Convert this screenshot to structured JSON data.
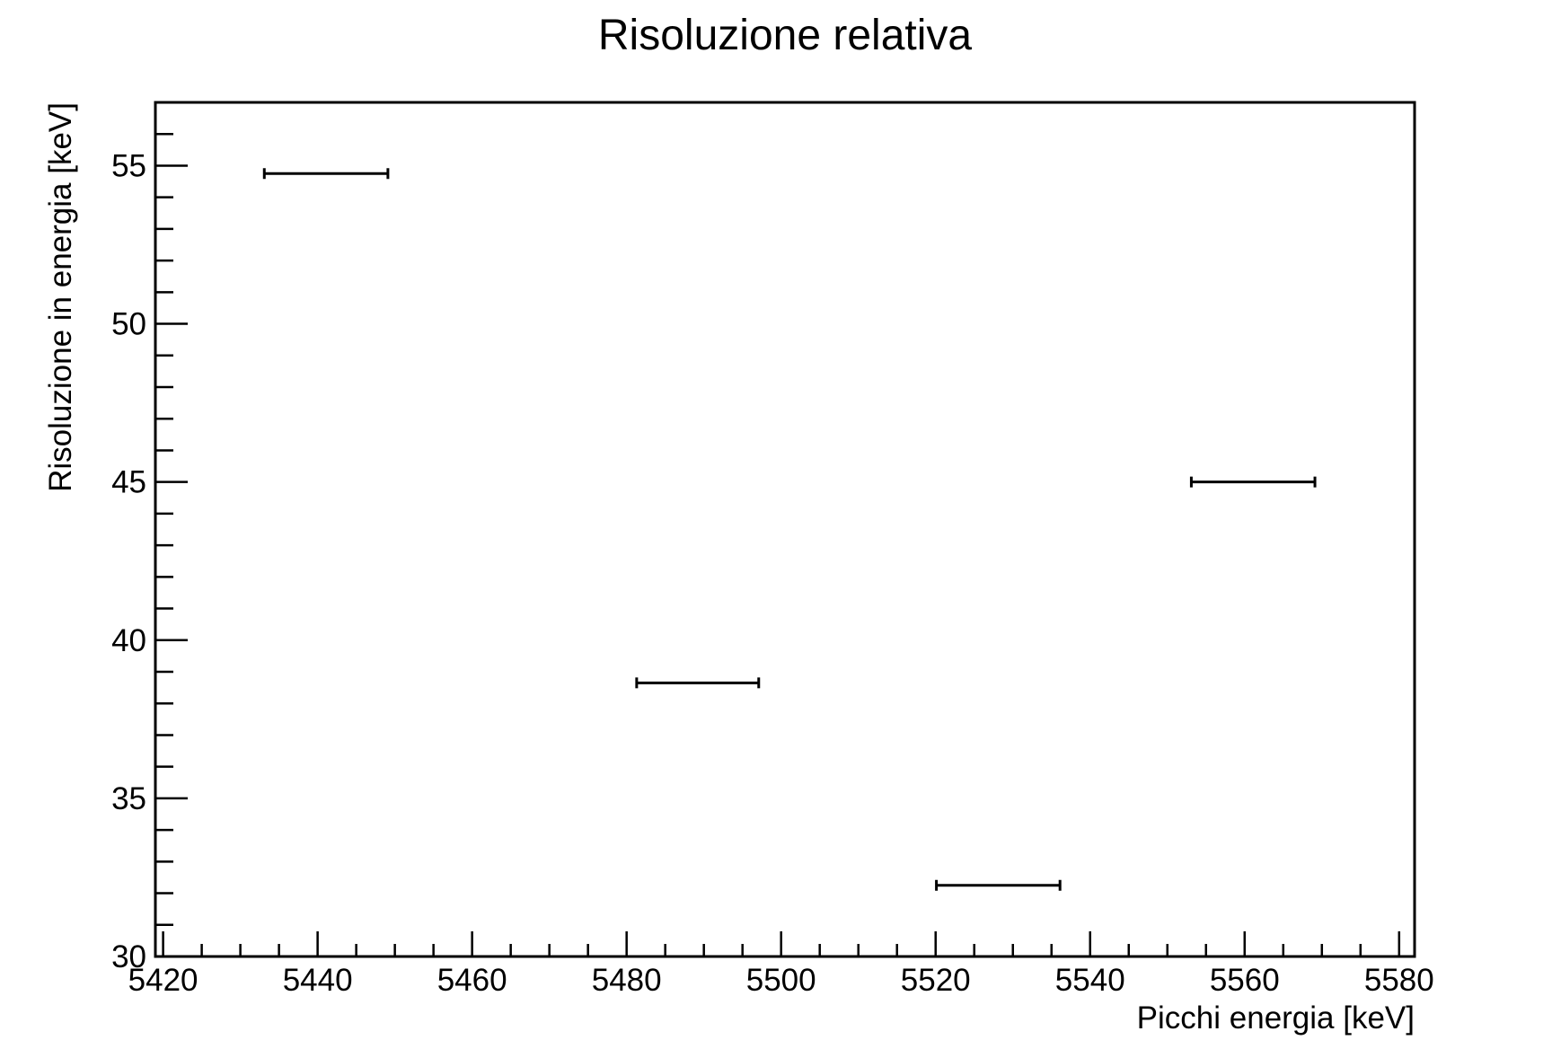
{
  "chart_data": {
    "type": "scatter",
    "title": "Risoluzione relativa",
    "xlabel": "Picchi energia [keV]",
    "ylabel": "Risoluzione in energia [keV]",
    "xlim": [
      5419,
      5582
    ],
    "ylim": [
      30,
      57
    ],
    "x_ticks": [
      5420,
      5440,
      5460,
      5480,
      5500,
      5520,
      5540,
      5560,
      5580
    ],
    "y_ticks": [
      30,
      35,
      40,
      45,
      50,
      55
    ],
    "grid": false,
    "series": [
      {
        "points": [
          {
            "x": 5441.1,
            "y": 54.75,
            "xerr": 8.0
          },
          {
            "x": 5489.2,
            "y": 38.65,
            "xerr": 7.9
          },
          {
            "x": 5528.1,
            "y": 32.25,
            "xerr": 8.0
          },
          {
            "x": 5561.1,
            "y": 45.0,
            "xerr": 8.0
          }
        ]
      }
    ],
    "colors": {
      "marker": "#000000",
      "axis": "#000000",
      "background": "#ffffff"
    }
  }
}
